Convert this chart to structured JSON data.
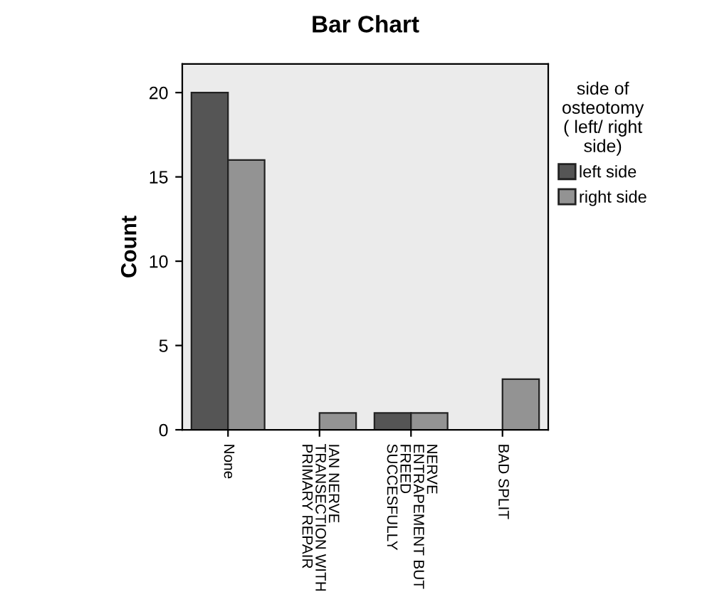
{
  "chart_data": {
    "type": "bar",
    "title": "Bar Chart",
    "ylabel": "Count",
    "legend_title": "side of\nosteotomy\n( left/ right\nside)",
    "categories": [
      "None",
      "IAN NERVE\nTRANSECTION WITH\nPRIMARY REPAIR",
      "NERVE\nENTRAPEMENT BUT\nFREED\nSUCCESFULLY",
      "BAD SPLIT"
    ],
    "series": [
      {
        "name": "left side",
        "color": "#555555",
        "values": [
          20,
          null,
          1,
          null
        ]
      },
      {
        "name": "right side",
        "color": "#939393",
        "values": [
          16,
          1,
          1,
          3
        ]
      }
    ],
    "ylim": [
      0,
      21.7
    ],
    "yticks": [
      0,
      5,
      10,
      15,
      20
    ],
    "grid": false,
    "legend": "right"
  }
}
